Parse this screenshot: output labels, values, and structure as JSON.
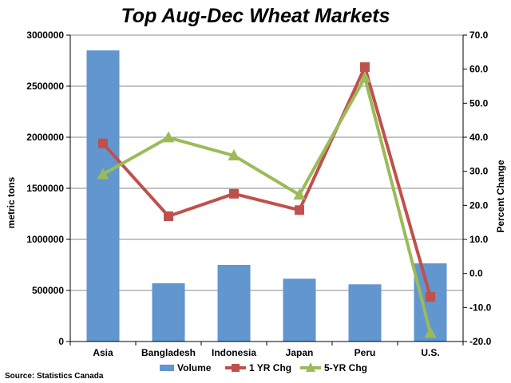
{
  "chart_data": {
    "type": "bar",
    "title": "Top Aug-Dec Wheat Markets",
    "categories": [
      "Asia",
      "Bangladesh",
      "Indonesia",
      "Japan",
      "Peru",
      "U.S."
    ],
    "series": [
      {
        "name": "Volume",
        "type": "bar",
        "axis": "left",
        "color": "#6196CF",
        "values": [
          2850000,
          570000,
          750000,
          615000,
          560000,
          765000
        ]
      },
      {
        "name": "1 YR Chg",
        "type": "line",
        "axis": "right",
        "marker": "square",
        "color": "#C0504D",
        "values": [
          38.2,
          16.8,
          23.4,
          18.6,
          60.6,
          -6.9
        ]
      },
      {
        "name": "5-YR Chg",
        "type": "line",
        "axis": "right",
        "marker": "triangle",
        "color": "#9BBB59",
        "values": [
          29.1,
          39.9,
          34.6,
          23.1,
          57.5,
          -17.5
        ]
      }
    ],
    "ylabel": "metric tons",
    "ylim": [
      0,
      3000000
    ],
    "yticks": [
      0,
      500000,
      1000000,
      1500000,
      2000000,
      2500000,
      3000000
    ],
    "y2label": "Percent Change",
    "y2lim": [
      -20,
      70
    ],
    "y2ticks": [
      "-20.0",
      "-10.0",
      "0.0",
      "10.0",
      "20.0",
      "30.0",
      "40.0",
      "50.0",
      "60.0",
      "70.0"
    ],
    "grid": true,
    "legend_position": "bottom",
    "source": "Source: Statistics Canada"
  }
}
